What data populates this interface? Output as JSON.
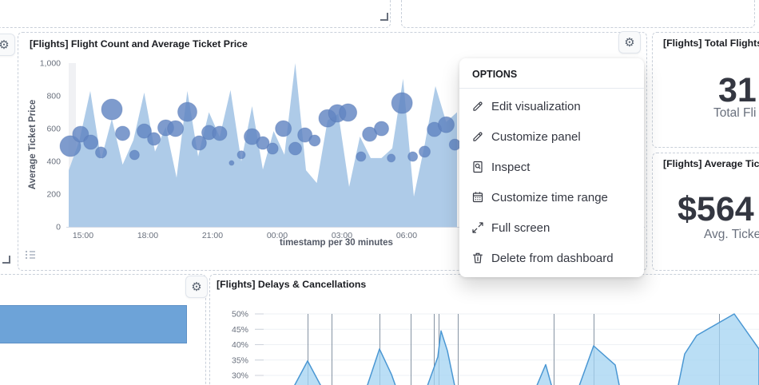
{
  "dashboard": {
    "panels": {
      "main": {
        "title": "[Flights] Flight Count and Average Ticket Price"
      },
      "total_flights": {
        "title": "[Flights] Total Flights",
        "value": "31",
        "caption": "Total Fli"
      },
      "avg_ticket": {
        "title": "[Flights] Average Ticket Pr",
        "value": "$564",
        "caption": "Avg. Ticke"
      },
      "delays": {
        "title": "[Flights] Delays & Cancellations"
      }
    },
    "menu": {
      "header": "OPTIONS",
      "items": [
        {
          "icon": "pencil-icon",
          "label": "Edit visualization"
        },
        {
          "icon": "pencil-icon",
          "label": "Customize panel"
        },
        {
          "icon": "inspect-icon",
          "label": "Inspect"
        },
        {
          "icon": "calendar-icon",
          "label": "Customize time range"
        },
        {
          "icon": "fullscreen-icon",
          "label": "Full screen"
        },
        {
          "icon": "trash-icon",
          "label": "Delete from dashboard"
        }
      ]
    },
    "colors": {
      "area_fill": "#aecbe8",
      "bubble": "#6285c2",
      "bubble_stroke": "#4d6fae",
      "bar": "#6da3d8",
      "delays_fill": "#a3d3f1",
      "delays_stroke": "#4a97d3",
      "annotation_line": "#8593a3",
      "text_dark": "#343741",
      "text_gray": "#69707d",
      "axis_line": "#d3dae6"
    }
  },
  "chart_data": [
    {
      "name": "flight-count-and-avg-ticket-price",
      "type": "area",
      "title": "[Flights] Flight Count and Average Ticket Price",
      "xlabel": "timestamp per 30 minutes",
      "ylabel": "Average Ticket Price",
      "ylim": [
        0,
        1000
      ],
      "grid": false,
      "yticks": [
        {
          "v": 0,
          "label": "0"
        },
        {
          "v": 200,
          "label": "200"
        },
        {
          "v": 400,
          "label": "400"
        },
        {
          "v": 600,
          "label": "600"
        },
        {
          "v": 800,
          "label": "800"
        },
        {
          "v": 1000,
          "label": "1,000"
        }
      ],
      "xticks": [
        {
          "t": 1.33,
          "label": "15:00"
        },
        {
          "t": 7.33,
          "label": "18:00"
        },
        {
          "t": 13.33,
          "label": "21:00"
        },
        {
          "t": 19.33,
          "label": "00:00"
        },
        {
          "t": 25.33,
          "label": "03:00"
        },
        {
          "t": 31.33,
          "label": "06:00"
        }
      ],
      "area_series": {
        "name": "Flight Count",
        "bucket": "30 minutes",
        "values": [
          345,
          530,
          830,
          410,
          660,
          380,
          530,
          820,
          460,
          610,
          300,
          830,
          430,
          700,
          550,
          835,
          400,
          737,
          350,
          585,
          440,
          1000,
          346,
          268,
          650,
          690,
          244,
          551,
          420,
          420,
          480,
          905,
          185,
          500,
          860,
          640,
          700
        ]
      },
      "bubble_series": {
        "name": "Average Ticket Price",
        "points_t_price_r": [
          [
            0.15,
            493,
            13
          ],
          [
            1.1,
            566,
            10
          ],
          [
            2.05,
            517,
            9
          ],
          [
            3,
            454,
            7
          ],
          [
            4,
            717,
            13
          ],
          [
            5,
            571,
            9
          ],
          [
            6.1,
            439,
            6
          ],
          [
            7,
            585,
            9
          ],
          [
            7.9,
            537,
            8
          ],
          [
            9,
            605,
            10
          ],
          [
            9.9,
            600,
            10
          ],
          [
            11,
            702,
            12
          ],
          [
            12.1,
            512,
            9
          ],
          [
            13,
            576,
            9
          ],
          [
            14,
            571,
            9
          ],
          [
            15.1,
            390,
            3
          ],
          [
            16,
            440,
            5
          ],
          [
            17,
            551,
            10
          ],
          [
            18,
            512,
            8
          ],
          [
            18.9,
            478,
            7
          ],
          [
            19.9,
            600,
            10
          ],
          [
            21,
            478,
            8
          ],
          [
            21.9,
            561,
            9
          ],
          [
            22.8,
            527,
            7
          ],
          [
            24,
            663,
            11
          ],
          [
            24.9,
            693,
            11
          ],
          [
            25.9,
            698,
            11
          ],
          [
            27.1,
            429,
            6
          ],
          [
            27.9,
            566,
            9
          ],
          [
            29,
            600,
            9
          ],
          [
            29.9,
            420,
            5
          ],
          [
            30.9,
            756,
            13
          ],
          [
            31.9,
            429,
            6
          ],
          [
            33,
            459,
            7
          ],
          [
            33.9,
            595,
            9
          ],
          [
            35,
            624,
            10
          ],
          [
            35.8,
            502,
            7
          ]
        ]
      }
    },
    {
      "name": "delays-and-cancellations",
      "type": "area",
      "title": "[Flights] Delays & Cancellations",
      "ylabel": "",
      "yticks": [
        {
          "v": 50,
          "label": "50%"
        },
        {
          "v": 45,
          "label": "45%"
        },
        {
          "v": 40,
          "label": "40%"
        },
        {
          "v": 35,
          "label": "35%"
        },
        {
          "v": 30,
          "label": "30%"
        }
      ],
      "ylim_visible": [
        27,
        52
      ],
      "peaks_x_pct": [
        [
          [
            101,
            24
          ],
          [
            123,
            34.7
          ],
          [
            145,
            24
          ]
        ],
        [
          [
            193,
            23
          ],
          [
            213,
            38.6
          ],
          [
            228,
            30.3
          ],
          [
            238,
            23
          ]
        ],
        [
          [
            268,
            23
          ],
          [
            286,
            36
          ],
          [
            290,
            44.5
          ],
          [
            298,
            38
          ],
          [
            310,
            23
          ]
        ],
        [
          [
            404,
            23
          ],
          [
            421,
            33.5
          ],
          [
            428,
            27
          ],
          [
            435,
            23
          ]
        ],
        [
          [
            458,
            23
          ],
          [
            481,
            39.6
          ],
          [
            508,
            33.4
          ],
          [
            516,
            23
          ]
        ],
        [
          [
            584,
            23
          ],
          [
            595,
            37
          ],
          [
            610,
            43
          ],
          [
            657,
            50
          ],
          [
            688,
            38.6
          ],
          [
            688,
            23
          ]
        ]
      ],
      "annotations_x": [
        123,
        153,
        213,
        252,
        281,
        287,
        311,
        431,
        481,
        638
      ]
    },
    {
      "name": "partial-bar-panel",
      "type": "bar",
      "orientation": "horizontal",
      "bars": [
        {
          "length_frac": 0.9
        }
      ]
    }
  ]
}
